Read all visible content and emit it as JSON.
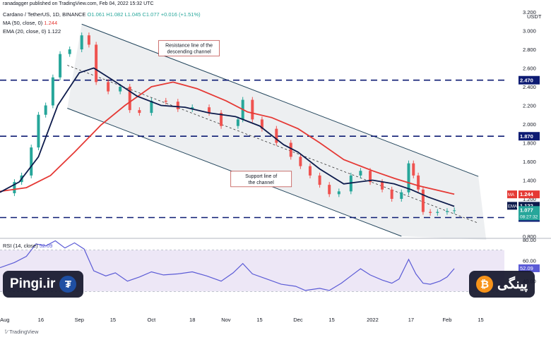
{
  "header": {
    "published_by": "ranadagger published on TradingView.com, Feb 04, 2022 15:32 UTC",
    "symbol_line": "Cardano / TetherUS, 1D, BINANCE",
    "ohlc": "O1.061  H1.082  L1.045  C1.077  +0.016 (+1.51%)",
    "ma_label": "MA (50, close, 0)",
    "ma_value": "1.244",
    "ema_label": "EMA (20, close, 0)",
    "ema_value": "1.122",
    "rsi_label": "RSI (14, close)",
    "rsi_value": "52.09"
  },
  "watermarks": {
    "left_text": "Pingi.ir",
    "left_icon": "tether-coin-icon",
    "right_text": "پینگی",
    "right_icon": "bitcoin-coin-icon"
  },
  "footer": {
    "brand": "TradingView"
  },
  "colors": {
    "up": "#26a69a",
    "down": "#ef5350",
    "ma": "#e53935",
    "ema": "#0d1b4c",
    "level_line": "#0d1b73",
    "channel": "#20435a",
    "rsi_line": "#5b5bd6",
    "rsi_band": "#ede7f6",
    "channel_fill": "#e9ebee"
  },
  "chart_data": [
    {
      "type": "candlestick",
      "title": "Cardano / TetherUS, 1D, BINANCE",
      "price_axis_unit": "USDT",
      "ylim": [
        0.8,
        3.2
      ],
      "y_ticks": [
        "3.200",
        "3.000",
        "2.800",
        "2.600",
        "2.400",
        "2.200",
        "2.000",
        "1.800",
        "1.600",
        "1.400",
        "1.200",
        "1.000",
        "0.800"
      ],
      "x_tick_labels": [
        "Aug",
        "16",
        "Sep",
        "15",
        "Oct",
        "18",
        "Nov",
        "15",
        "Dec",
        "15",
        "2022",
        "17",
        "Feb",
        "15"
      ],
      "x_tick_dates": [
        "2021-08-01",
        "2021-08-16",
        "2021-09-01",
        "2021-09-15",
        "2021-10-01",
        "2021-10-18",
        "2021-11-01",
        "2021-11-15",
        "2021-12-01",
        "2021-12-15",
        "2022-01-01",
        "2022-01-17",
        "2022-02-01",
        "2022-02-15"
      ],
      "horizontal_levels": [
        {
          "value": 2.47,
          "label": "2.470"
        },
        {
          "value": 1.87,
          "label": "1.870"
        },
        {
          "value": 1.0,
          "label": "1.000"
        }
      ],
      "price_tags": [
        {
          "name": "MA",
          "value": 1.244,
          "label": "1.244"
        },
        {
          "name": "EMA",
          "value": 1.122,
          "label": "1.122"
        },
        {
          "name": "Last",
          "value": 1.077,
          "label": "1.077",
          "countdown": "08:27:32"
        }
      ],
      "channel": {
        "resistance": [
          {
            "date": "2021-09-02",
            "y": 3.07
          },
          {
            "date": "2022-02-14",
            "y": 1.44
          }
        ],
        "midline": [
          {
            "date": "2021-08-27",
            "y": 2.63
          },
          {
            "date": "2022-02-14",
            "y": 0.94
          }
        ],
        "support": [
          {
            "date": "2021-08-27",
            "y": 2.17
          },
          {
            "date": "2022-01-13",
            "y": 0.8
          }
        ]
      },
      "annotations": [
        {
          "text": [
            "Resistance line of the",
            "descending channel"
          ],
          "anchor_date": "2021-10-04",
          "anchor_y": 2.79
        },
        {
          "text": [
            "Support line of",
            "the channel"
          ],
          "anchor_date": "2021-11-03",
          "anchor_y": 1.39
        }
      ],
      "series": [
        {
          "name": "MA (50, close, 0)",
          "type": "line",
          "points": [
            {
              "x": "2021-07-30",
              "y": 1.28
            },
            {
              "x": "2021-08-10",
              "y": 1.32
            },
            {
              "x": "2021-08-20",
              "y": 1.45
            },
            {
              "x": "2021-08-30",
              "y": 1.7
            },
            {
              "x": "2021-09-10",
              "y": 1.99
            },
            {
              "x": "2021-09-20",
              "y": 2.2
            },
            {
              "x": "2021-10-01",
              "y": 2.4
            },
            {
              "x": "2021-10-10",
              "y": 2.45
            },
            {
              "x": "2021-10-20",
              "y": 2.38
            },
            {
              "x": "2021-11-01",
              "y": 2.25
            },
            {
              "x": "2021-11-10",
              "y": 2.13
            },
            {
              "x": "2021-11-20",
              "y": 2.07
            },
            {
              "x": "2021-12-01",
              "y": 1.95
            },
            {
              "x": "2021-12-10",
              "y": 1.8
            },
            {
              "x": "2021-12-20",
              "y": 1.62
            },
            {
              "x": "2022-01-01",
              "y": 1.5
            },
            {
              "x": "2022-01-10",
              "y": 1.42
            },
            {
              "x": "2022-01-20",
              "y": 1.34
            },
            {
              "x": "2022-02-04",
              "y": 1.25
            }
          ]
        },
        {
          "name": "EMA (20, close, 0)",
          "type": "line",
          "points": [
            {
              "x": "2021-07-30",
              "y": 1.27
            },
            {
              "x": "2021-08-07",
              "y": 1.38
            },
            {
              "x": "2021-08-15",
              "y": 1.65
            },
            {
              "x": "2021-08-23",
              "y": 2.2
            },
            {
              "x": "2021-09-01",
              "y": 2.55
            },
            {
              "x": "2021-09-07",
              "y": 2.6
            },
            {
              "x": "2021-09-15",
              "y": 2.47
            },
            {
              "x": "2021-09-25",
              "y": 2.3
            },
            {
              "x": "2021-10-05",
              "y": 2.2
            },
            {
              "x": "2021-10-15",
              "y": 2.18
            },
            {
              "x": "2021-10-25",
              "y": 2.12
            },
            {
              "x": "2021-11-05",
              "y": 2.08
            },
            {
              "x": "2021-11-15",
              "y": 1.98
            },
            {
              "x": "2021-11-25",
              "y": 1.78
            },
            {
              "x": "2021-12-01",
              "y": 1.7
            },
            {
              "x": "2021-12-10",
              "y": 1.52
            },
            {
              "x": "2021-12-20",
              "y": 1.36
            },
            {
              "x": "2022-01-01",
              "y": 1.4
            },
            {
              "x": "2022-01-10",
              "y": 1.36
            },
            {
              "x": "2022-01-17",
              "y": 1.3
            },
            {
              "x": "2022-01-24",
              "y": 1.22
            },
            {
              "x": "2022-02-04",
              "y": 1.12
            }
          ]
        },
        {
          "name": "Price (close)",
          "type": "candlestick",
          "points": [
            {
              "x": "2021-07-30",
              "y": 1.26
            },
            {
              "x": "2021-08-05",
              "y": 1.38
            },
            {
              "x": "2021-08-08",
              "y": 1.45
            },
            {
              "x": "2021-08-12",
              "y": 1.75
            },
            {
              "x": "2021-08-15",
              "y": 2.1
            },
            {
              "x": "2021-08-18",
              "y": 2.2
            },
            {
              "x": "2021-08-21",
              "y": 2.5
            },
            {
              "x": "2021-08-24",
              "y": 2.75
            },
            {
              "x": "2021-08-28",
              "y": 2.8
            },
            {
              "x": "2021-09-02",
              "y": 2.95
            },
            {
              "x": "2021-09-05",
              "y": 2.85
            },
            {
              "x": "2021-09-08",
              "y": 2.45
            },
            {
              "x": "2021-09-13",
              "y": 2.35
            },
            {
              "x": "2021-09-18",
              "y": 2.4
            },
            {
              "x": "2021-09-22",
              "y": 2.15
            },
            {
              "x": "2021-09-26",
              "y": 2.12
            },
            {
              "x": "2021-10-01",
              "y": 2.25
            },
            {
              "x": "2021-10-07",
              "y": 2.24
            },
            {
              "x": "2021-10-12",
              "y": 2.16
            },
            {
              "x": "2021-10-18",
              "y": 2.18
            },
            {
              "x": "2021-10-25",
              "y": 2.12
            },
            {
              "x": "2021-10-30",
              "y": 1.98
            },
            {
              "x": "2021-11-06",
              "y": 2.05
            },
            {
              "x": "2021-11-08",
              "y": 2.26
            },
            {
              "x": "2021-11-12",
              "y": 2.05
            },
            {
              "x": "2021-11-16",
              "y": 1.95
            },
            {
              "x": "2021-11-22",
              "y": 1.8
            },
            {
              "x": "2021-11-28",
              "y": 1.65
            },
            {
              "x": "2021-12-02",
              "y": 1.55
            },
            {
              "x": "2021-12-06",
              "y": 1.45
            },
            {
              "x": "2021-12-10",
              "y": 1.35
            },
            {
              "x": "2021-12-14",
              "y": 1.25
            },
            {
              "x": "2021-12-18",
              "y": 1.28
            },
            {
              "x": "2021-12-23",
              "y": 1.45
            },
            {
              "x": "2021-12-27",
              "y": 1.5
            },
            {
              "x": "2021-12-31",
              "y": 1.38
            },
            {
              "x": "2022-01-05",
              "y": 1.3
            },
            {
              "x": "2022-01-09",
              "y": 1.2
            },
            {
              "x": "2022-01-13",
              "y": 1.27
            },
            {
              "x": "2022-01-16",
              "y": 1.58
            },
            {
              "x": "2022-01-18",
              "y": 1.45
            },
            {
              "x": "2022-01-20",
              "y": 1.3
            },
            {
              "x": "2022-01-22",
              "y": 1.06
            },
            {
              "x": "2022-01-25",
              "y": 1.05
            },
            {
              "x": "2022-01-28",
              "y": 1.06
            },
            {
              "x": "2022-02-01",
              "y": 1.07
            },
            {
              "x": "2022-02-04",
              "y": 1.077
            }
          ]
        }
      ]
    },
    {
      "type": "line",
      "title": "RSI (14, close)",
      "ylim": [
        20,
        80
      ],
      "y_ticks": [
        "80.00",
        "60.00",
        "40.00"
      ],
      "band": [
        30,
        70
      ],
      "series": [
        {
          "name": "RSI (14, close)",
          "points": [
            {
              "x": "2021-07-30",
              "y": 53
            },
            {
              "x": "2021-08-05",
              "y": 58
            },
            {
              "x": "2021-08-10",
              "y": 64
            },
            {
              "x": "2021-08-14",
              "y": 76
            },
            {
              "x": "2021-08-18",
              "y": 74
            },
            {
              "x": "2021-08-22",
              "y": 79
            },
            {
              "x": "2021-08-26",
              "y": 72
            },
            {
              "x": "2021-08-30",
              "y": 77
            },
            {
              "x": "2021-09-03",
              "y": 71
            },
            {
              "x": "2021-09-07",
              "y": 50
            },
            {
              "x": "2021-09-12",
              "y": 45
            },
            {
              "x": "2021-09-16",
              "y": 48
            },
            {
              "x": "2021-09-21",
              "y": 40
            },
            {
              "x": "2021-09-26",
              "y": 44
            },
            {
              "x": "2021-10-01",
              "y": 49
            },
            {
              "x": "2021-10-06",
              "y": 46
            },
            {
              "x": "2021-10-12",
              "y": 47
            },
            {
              "x": "2021-10-18",
              "y": 49
            },
            {
              "x": "2021-10-24",
              "y": 45
            },
            {
              "x": "2021-10-30",
              "y": 40
            },
            {
              "x": "2021-11-04",
              "y": 48
            },
            {
              "x": "2021-11-08",
              "y": 57
            },
            {
              "x": "2021-11-12",
              "y": 47
            },
            {
              "x": "2021-11-18",
              "y": 42
            },
            {
              "x": "2021-11-24",
              "y": 37
            },
            {
              "x": "2021-11-30",
              "y": 35
            },
            {
              "x": "2021-12-04",
              "y": 31
            },
            {
              "x": "2021-12-10",
              "y": 33
            },
            {
              "x": "2021-12-14",
              "y": 31
            },
            {
              "x": "2021-12-19",
              "y": 38
            },
            {
              "x": "2021-12-23",
              "y": 45
            },
            {
              "x": "2021-12-27",
              "y": 52
            },
            {
              "x": "2021-12-31",
              "y": 46
            },
            {
              "x": "2022-01-05",
              "y": 41
            },
            {
              "x": "2022-01-09",
              "y": 38
            },
            {
              "x": "2022-01-12",
              "y": 42
            },
            {
              "x": "2022-01-16",
              "y": 61
            },
            {
              "x": "2022-01-19",
              "y": 47
            },
            {
              "x": "2022-01-22",
              "y": 38
            },
            {
              "x": "2022-01-25",
              "y": 37
            },
            {
              "x": "2022-01-29",
              "y": 40
            },
            {
              "x": "2022-02-01",
              "y": 44
            },
            {
              "x": "2022-02-04",
              "y": 52.09
            }
          ]
        }
      ]
    }
  ]
}
